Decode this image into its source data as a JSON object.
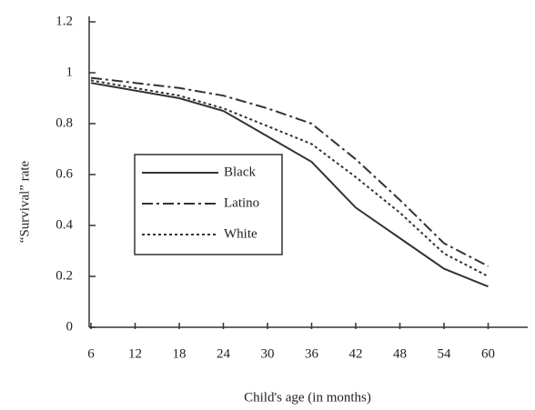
{
  "chart_data": {
    "type": "line",
    "xlabel": "Child's age (in months)",
    "ylabel": "“Survival” rate",
    "x": [
      6,
      12,
      18,
      24,
      30,
      36,
      42,
      48,
      54,
      60
    ],
    "series": [
      {
        "name": "Black",
        "color": "#333333",
        "linestyle": "solid",
        "values": [
          0.96,
          0.93,
          0.9,
          0.85,
          0.75,
          0.65,
          0.47,
          0.35,
          0.23,
          0.16
        ]
      },
      {
        "name": "Latino",
        "color": "#333333",
        "linestyle": "dashdot",
        "values": [
          0.98,
          0.96,
          0.94,
          0.91,
          0.86,
          0.8,
          0.66,
          0.5,
          0.33,
          0.24
        ]
      },
      {
        "name": "White",
        "color": "#333333",
        "linestyle": "dotted",
        "values": [
          0.97,
          0.94,
          0.91,
          0.86,
          0.79,
          0.72,
          0.59,
          0.45,
          0.29,
          0.2
        ]
      }
    ],
    "xlim": [
      6,
      66
    ],
    "xticks": [
      6,
      12,
      18,
      24,
      30,
      36,
      42,
      48,
      54,
      60
    ],
    "ylim": [
      0,
      1.2
    ],
    "yticks": [
      0,
      0.2,
      0.4,
      0.6,
      0.8,
      1,
      1.2
    ],
    "legend": "center-left"
  }
}
